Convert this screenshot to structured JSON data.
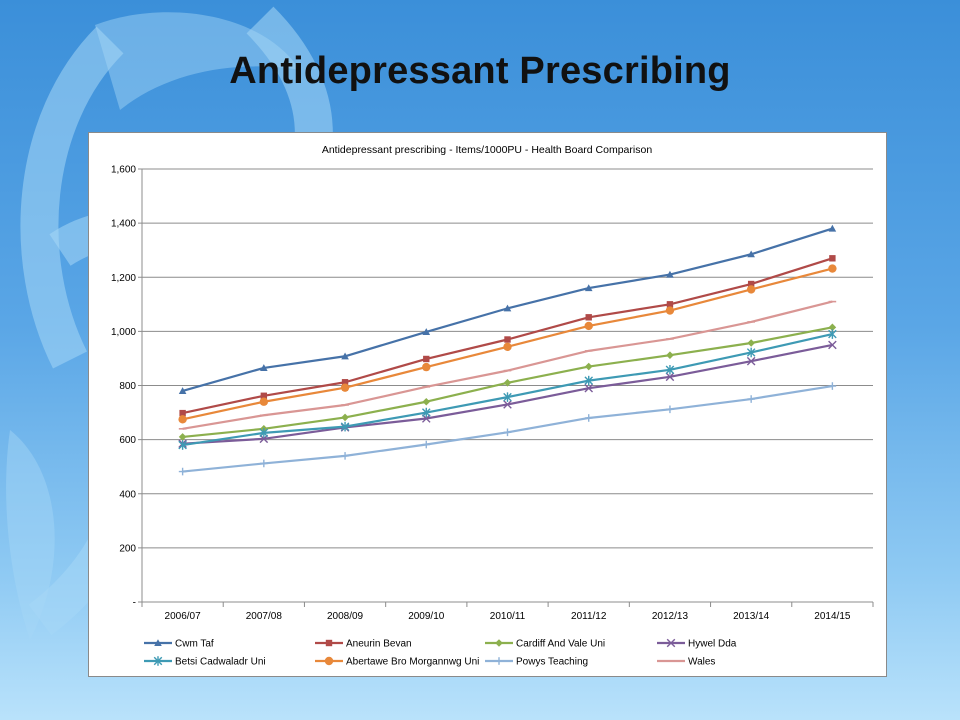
{
  "slide": {
    "title": "Antidepressant Prescribing"
  },
  "colors": {
    "background_top": "#3b8fd9",
    "background_bottom": "#b9e2fb",
    "decoration": "#9fd3f5"
  },
  "chart_data": {
    "type": "line",
    "title": "Antidepressant prescribing - Items/1000PU - Health Board Comparison",
    "xlabel": "",
    "ylabel": "",
    "categories": [
      "2006/07",
      "2007/08",
      "2008/09",
      "2009/10",
      "2010/11",
      "2011/12",
      "2012/13",
      "2013/14",
      "2014/15"
    ],
    "ylim": [
      0,
      1600
    ],
    "yticks": [
      0,
      200,
      400,
      600,
      800,
      1000,
      1200,
      1400,
      1600
    ],
    "ytick_labels": [
      "-",
      "200",
      "400",
      "600",
      "800",
      "1,000",
      "1,200",
      "1,400",
      "1,600"
    ],
    "grid": true,
    "legend_position": "bottom",
    "series": [
      {
        "name": "Cwm Taf",
        "color": "#4672a8",
        "marker": "triangle",
        "values": [
          780,
          865,
          908,
          998,
          1085,
          1160,
          1210,
          1285,
          1380
        ]
      },
      {
        "name": "Aneurin Bevan",
        "color": "#b04a48",
        "marker": "square",
        "values": [
          698,
          762,
          812,
          898,
          970,
          1052,
          1100,
          1175,
          1270
        ]
      },
      {
        "name": "Cardiff And Vale Uni",
        "color": "#8cb04e",
        "marker": "diamond",
        "values": [
          610,
          640,
          682,
          740,
          810,
          870,
          912,
          957,
          1015
        ]
      },
      {
        "name": "Hywel Dda",
        "color": "#7b5c99",
        "marker": "x",
        "values": [
          585,
          603,
          645,
          678,
          730,
          790,
          832,
          890,
          950
        ]
      },
      {
        "name": "Betsi Cadwaladr Uni",
        "color": "#3e9ab4",
        "marker": "star",
        "values": [
          580,
          625,
          648,
          700,
          757,
          818,
          858,
          922,
          990
        ]
      },
      {
        "name": "Abertawe Bro Morgannwg Uni",
        "color": "#e8883a",
        "marker": "circle",
        "values": [
          675,
          740,
          792,
          868,
          943,
          1020,
          1077,
          1155,
          1232
        ]
      },
      {
        "name": "Powys Teaching",
        "color": "#8fb2d8",
        "marker": "plus",
        "values": [
          482,
          512,
          540,
          582,
          627,
          680,
          712,
          750,
          798
        ]
      },
      {
        "name": "Wales",
        "color": "#d99694",
        "marker": "dash",
        "values": [
          640,
          690,
          728,
          795,
          855,
          928,
          972,
          1035,
          1110
        ]
      }
    ]
  }
}
